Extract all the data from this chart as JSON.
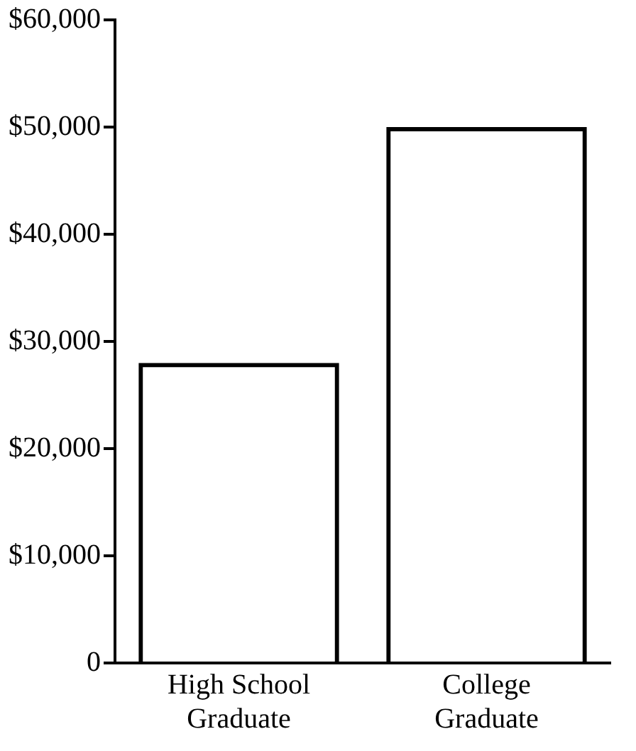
{
  "chart_data": {
    "type": "bar",
    "categories": [
      "High School Graduate",
      "College Graduate"
    ],
    "values": [
      28000,
      50000
    ],
    "color": "#000000",
    "ylim": [
      0,
      60000
    ],
    "yticks": [
      0,
      {
        "value": 10000,
        "label": "$10,000"
      },
      {
        "value": 20000,
        "label": "$20,000"
      },
      {
        "value": 30000,
        "label": "$30,000"
      },
      {
        "value": 40000,
        "label": "$40,000"
      },
      {
        "value": 50000,
        "label": "$50,000"
      },
      {
        "value": 60000,
        "label": "$60,000"
      }
    ],
    "grid": false,
    "legend": false
  }
}
